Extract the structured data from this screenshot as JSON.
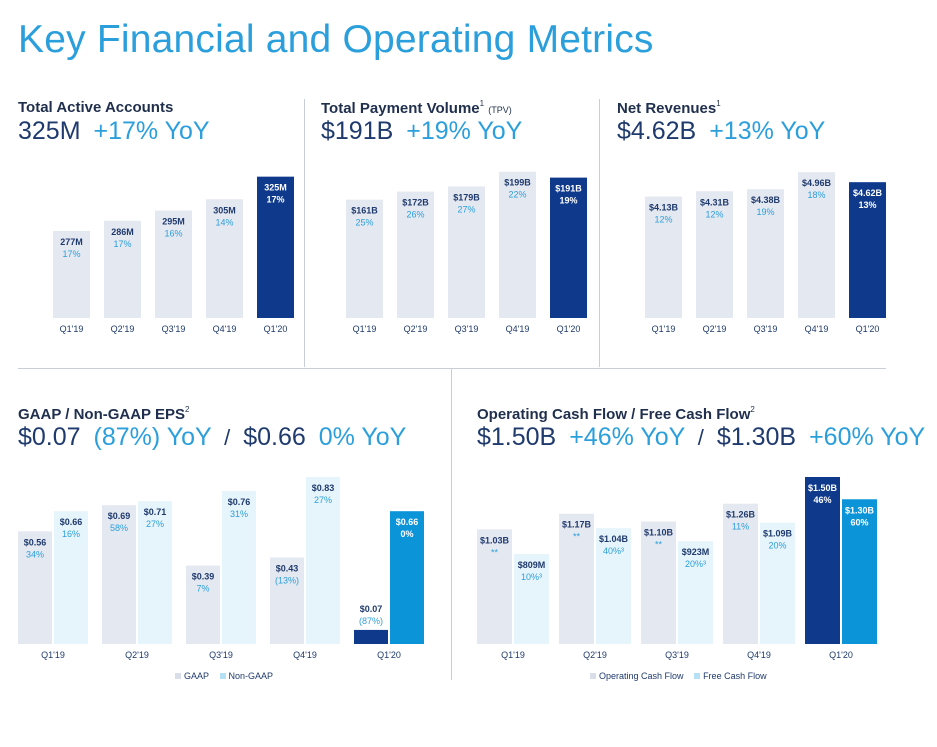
{
  "page": {
    "title": "Key Financial and Operating Metrics"
  },
  "colors": {
    "bar_light": "#e4e8f1",
    "bar_highlight": "#0f3a8c",
    "nongaap_light": "#e6f4fb",
    "nongaap_highlight": "#0b94d8",
    "fcf_light": "#e6f4fb",
    "fcf_highlight": "#0b94d8",
    "value_text_dark": "#1f3a6d",
    "pct_text": "#2b9fdc",
    "highlight_text": "#ffffff"
  },
  "panels": {
    "active_accounts": {
      "title": "Total Active Accounts",
      "headline_value": "325M",
      "headline_growth": "+17% YoY"
    },
    "tpv": {
      "title": "Total Payment Volume",
      "title_sup": "1",
      "title_small": "(TPV)",
      "headline_value": "$191B",
      "headline_growth": "+19% YoY"
    },
    "net_revenues": {
      "title": "Net Revenues",
      "title_sup": "1",
      "headline_value": "$4.62B",
      "headline_growth": "+13% YoY"
    },
    "eps": {
      "title": "GAAP / Non-GAAP EPS",
      "title_sup": "2",
      "headline_gaap": "$0.07",
      "headline_gaap_growth": "(87%) YoY",
      "separator": "/",
      "headline_nongaap": "$0.66",
      "headline_nongaap_growth": "0% YoY",
      "legend": [
        "GAAP",
        "Non-GAAP"
      ]
    },
    "cash_flow": {
      "title": "Operating Cash Flow / Free Cash Flow",
      "title_sup": "2",
      "headline_ocf": "$1.50B",
      "headline_ocf_growth": "+46% YoY",
      "separator": "/",
      "headline_fcf": "$1.30B",
      "headline_fcf_growth": "+60% YoY",
      "legend": [
        "Operating Cash Flow",
        "Free Cash Flow"
      ]
    }
  },
  "chart_data": [
    {
      "id": "active_accounts",
      "type": "bar",
      "categories": [
        "Q1'19",
        "Q2'19",
        "Q3'19",
        "Q4'19",
        "Q1'20"
      ],
      "values": [
        277,
        286,
        295,
        305,
        325
      ],
      "value_labels": [
        "277M",
        "286M",
        "295M",
        "305M",
        "325M"
      ],
      "growth_labels": [
        "17%",
        "17%",
        "16%",
        "14%",
        "17%"
      ],
      "ylim": [
        200,
        330
      ]
    },
    {
      "id": "tpv",
      "type": "bar",
      "categories": [
        "Q1'19",
        "Q2'19",
        "Q3'19",
        "Q4'19",
        "Q1'20"
      ],
      "values": [
        161,
        172,
        179,
        199,
        191
      ],
      "value_labels": [
        "$161B",
        "$172B",
        "$179B",
        "$199B",
        "$191B"
      ],
      "growth_labels": [
        "25%",
        "26%",
        "27%",
        "22%",
        "19%"
      ],
      "ylim": [
        0,
        200
      ]
    },
    {
      "id": "net_revenues",
      "type": "bar",
      "categories": [
        "Q1'19",
        "Q2'19",
        "Q3'19",
        "Q4'19",
        "Q1'20"
      ],
      "values": [
        4.13,
        4.31,
        4.38,
        4.96,
        4.62
      ],
      "value_labels": [
        "$4.13B",
        "$4.31B",
        "$4.38B",
        "$4.96B",
        "$4.62B"
      ],
      "growth_labels": [
        "12%",
        "12%",
        "19%",
        "18%",
        "13%"
      ],
      "ylim": [
        0,
        5
      ]
    },
    {
      "id": "eps",
      "type": "bar",
      "categories": [
        "Q1'19",
        "Q2'19",
        "Q3'19",
        "Q4'19",
        "Q1'20"
      ],
      "series": [
        {
          "name": "GAAP",
          "values": [
            0.56,
            0.69,
            0.39,
            0.43,
            0.07
          ],
          "value_labels": [
            "$0.56",
            "$0.69",
            "$0.39",
            "$0.43",
            "$0.07"
          ],
          "growth_labels": [
            "34%",
            "58%",
            "7%",
            "(13%)",
            "(87%)"
          ]
        },
        {
          "name": "Non-GAAP",
          "values": [
            0.66,
            0.71,
            0.76,
            0.83,
            0.66
          ],
          "value_labels": [
            "$0.66",
            "$0.71",
            "$0.76",
            "$0.83",
            "$0.66"
          ],
          "growth_labels": [
            "16%",
            "27%",
            "31%",
            "27%",
            "0%"
          ]
        }
      ],
      "ylim": [
        0,
        0.83
      ],
      "legend_position": "bottom"
    },
    {
      "id": "cash_flow",
      "type": "bar",
      "categories": [
        "Q1'19",
        "Q2'19",
        "Q3'19",
        "Q4'19",
        "Q1'20"
      ],
      "series": [
        {
          "name": "Operating Cash Flow",
          "values": [
            1.03,
            1.17,
            1.1,
            1.26,
            1.5
          ],
          "value_labels": [
            "$1.03B",
            "$1.17B",
            "$1.10B",
            "$1.26B",
            "$1.50B"
          ],
          "growth_labels": [
            "**",
            "**",
            "**",
            "11%",
            "46%"
          ]
        },
        {
          "name": "Free Cash Flow",
          "values": [
            0.809,
            1.04,
            0.923,
            1.09,
            1.3
          ],
          "value_labels": [
            "$809M",
            "$1.04B",
            "$923M",
            "$1.09B",
            "$1.30B"
          ],
          "growth_labels": [
            "10%³",
            "40%³",
            "20%³",
            "20%",
            "60%"
          ]
        }
      ],
      "ylim": [
        0,
        1.5
      ],
      "legend_position": "bottom"
    }
  ]
}
